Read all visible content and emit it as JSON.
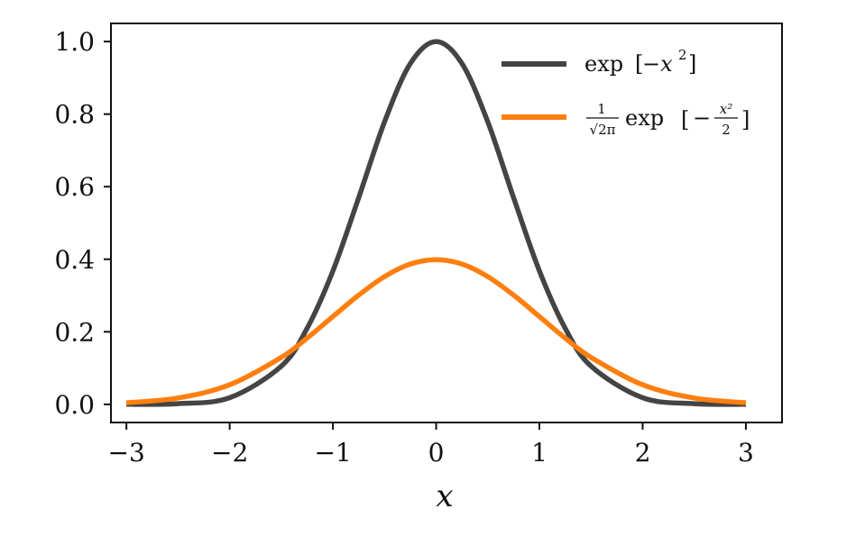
{
  "chart_data": {
    "type": "line",
    "xlabel": "x",
    "ylabel": "",
    "title": "",
    "xlim": [
      -3.15,
      3.35
    ],
    "ylim": [
      -0.05,
      1.05
    ],
    "xticks": [
      -3,
      -2,
      -1,
      0,
      1,
      2,
      3
    ],
    "xtick_labels": [
      "−3",
      "−2",
      "−1",
      "0",
      "1",
      "2",
      "3"
    ],
    "yticks": [
      0.0,
      0.2,
      0.4,
      0.6,
      0.8,
      1.0
    ],
    "ytick_labels": [
      "0.0",
      "0.2",
      "0.4",
      "0.6",
      "0.8",
      "1.0"
    ],
    "grid": false,
    "legend_position": "top-right",
    "x": [
      -3.0,
      -2.5,
      -2.0,
      -1.5,
      -1.25,
      -1.0,
      -0.75,
      -0.5,
      -0.25,
      0.0,
      0.25,
      0.5,
      0.75,
      1.0,
      1.25,
      1.5,
      2.0,
      2.5,
      3.0
    ],
    "series": [
      {
        "name": "exp[−x²]",
        "color": "#444444",
        "values": [
          0.0001,
          0.0019,
          0.0183,
          0.1054,
          0.2096,
          0.3679,
          0.5698,
          0.7788,
          0.9394,
          1.0,
          0.9394,
          0.7788,
          0.5698,
          0.3679,
          0.2096,
          0.1054,
          0.0183,
          0.0019,
          0.0001
        ]
      },
      {
        "name": "1/√(2π) exp[−x²/2]",
        "color": "#ff7f0e",
        "values": [
          0.0044,
          0.0175,
          0.054,
          0.1295,
          0.1826,
          0.242,
          0.3011,
          0.3521,
          0.3867,
          0.3989,
          0.3867,
          0.3521,
          0.3011,
          0.242,
          0.1826,
          0.1295,
          0.054,
          0.0175,
          0.0044
        ]
      }
    ],
    "legend": {
      "entry1": {
        "prefix": "exp",
        "open": "[",
        "body": "−x",
        "sup": "2",
        "close": "]"
      },
      "entry2": {
        "num": "1",
        "den": "√2π",
        "func": "exp",
        "open": "[",
        "minus": "−",
        "frac_num": "x²",
        "frac_den": "2",
        "close": "]"
      }
    }
  }
}
